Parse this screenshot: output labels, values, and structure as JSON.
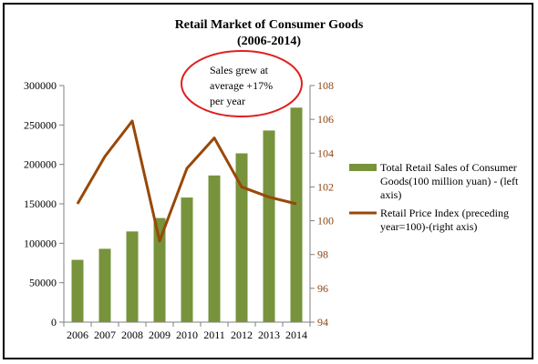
{
  "chart_data": {
    "type": "bar+line",
    "title_line1": "Retail Market of Consumer Goods",
    "title_line2": "(2006-2014)",
    "categories": [
      "2006",
      "2007",
      "2008",
      "2009",
      "2010",
      "2011",
      "2012",
      "2013",
      "2014"
    ],
    "series": [
      {
        "name": "Total Retail Sales of Consumer Goods(100 million yuan) - (left axis)",
        "type": "bar",
        "axis": "left",
        "color": "#77933C",
        "values": [
          79000,
          93000,
          115000,
          132000,
          158000,
          186000,
          214000,
          243000,
          272000
        ]
      },
      {
        "name": "Retail Price Index (preceding year=100)-(right axis)",
        "type": "line",
        "axis": "right",
        "color": "#984807",
        "values": [
          101.0,
          103.8,
          105.9,
          98.8,
          103.1,
          104.9,
          102.0,
          101.4,
          101.0
        ]
      }
    ],
    "y_left": {
      "min": 0,
      "max": 300000,
      "ticks": [
        "0",
        "50000",
        "100000",
        "150000",
        "200000",
        "250000",
        "300000"
      ]
    },
    "y_right": {
      "min": 94,
      "max": 108,
      "ticks": [
        "94",
        "96",
        "98",
        "100",
        "102",
        "104",
        "106",
        "108"
      ]
    },
    "legend_position": "right",
    "grid": false,
    "annotation": {
      "lines": [
        "Sales grew at",
        "average +17%",
        "per year"
      ],
      "border_color": "#E02020"
    },
    "legend_lines": [
      [
        "Total Retail Sales of Consumer",
        "Goods(100 million yuan) - (left",
        "axis)"
      ],
      [
        "Retail Price Index (preceding",
        "year=100)-(right axis)"
      ]
    ]
  }
}
